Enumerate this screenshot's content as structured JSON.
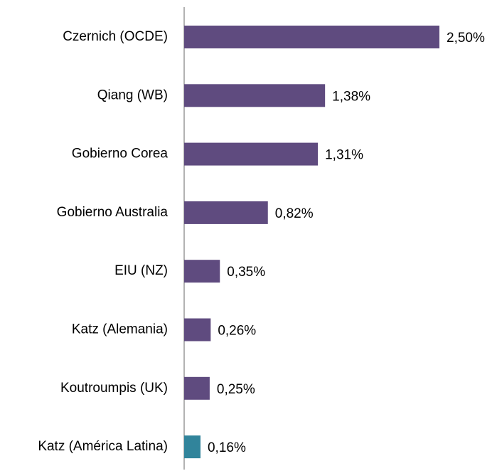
{
  "chart_data": {
    "type": "hbar",
    "categories": [
      "Czernich (OCDE)",
      "Qiang (WB)",
      "Gobierno Corea",
      "Gobierno Australia",
      "EIU (NZ)",
      "Katz (Alemania)",
      "Koutroumpis (UK)",
      "Katz (América Latina)"
    ],
    "values": [
      2.5,
      1.38,
      1.31,
      0.82,
      0.35,
      0.26,
      0.25,
      0.16
    ],
    "value_labels": [
      "2,50%",
      "1,38%",
      "1,31%",
      "0,82%",
      "0,35%",
      "0,26%",
      "0,25%",
      "0,16%"
    ],
    "colors": [
      "#5f4b7f",
      "#5f4b7f",
      "#5f4b7f",
      "#5f4b7f",
      "#5f4b7f",
      "#5f4b7f",
      "#5f4b7f",
      "#31849b"
    ],
    "xlim": [
      0,
      2.5
    ]
  }
}
